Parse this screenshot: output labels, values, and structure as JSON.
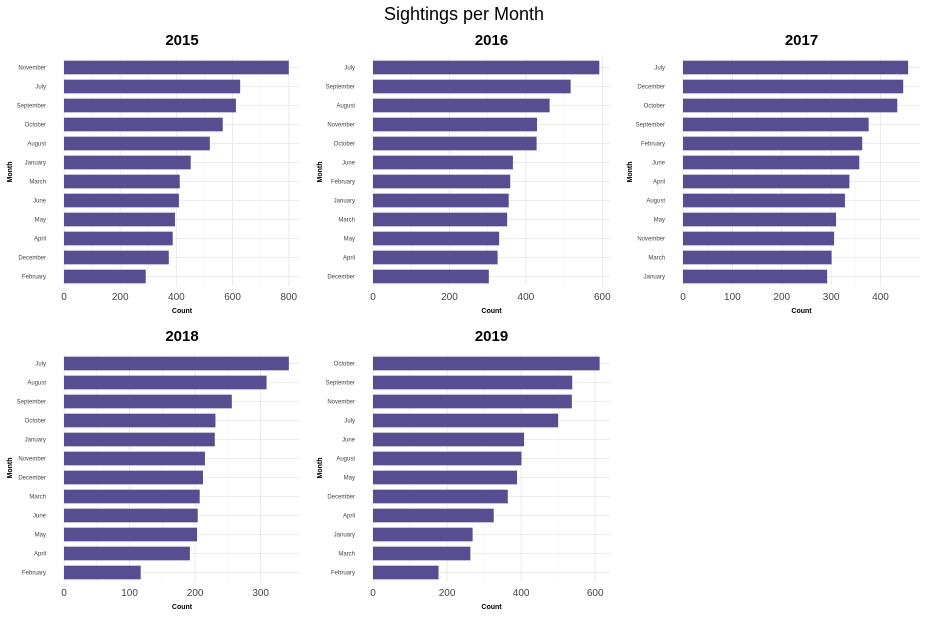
{
  "title": "Sightings per Month",
  "chart_data": [
    {
      "type": "bar",
      "orientation": "horizontal",
      "title": "2015",
      "xlabel": "Count",
      "ylabel": "Month",
      "categories": [
        "November",
        "July",
        "September",
        "October",
        "August",
        "January",
        "March",
        "June",
        "May",
        "April",
        "December",
        "February"
      ],
      "values": [
        800,
        627,
        612,
        565,
        519,
        451,
        412,
        409,
        395,
        387,
        373,
        291
      ],
      "xlim": [
        0,
        840
      ],
      "xticks": [
        0,
        200,
        400,
        600,
        800
      ],
      "color": "#574e92"
    },
    {
      "type": "bar",
      "orientation": "horizontal",
      "title": "2016",
      "xlabel": "Count",
      "ylabel": "Month",
      "categories": [
        "July",
        "September",
        "August",
        "November",
        "October",
        "June",
        "February",
        "January",
        "March",
        "May",
        "April",
        "December"
      ],
      "values": [
        592,
        517,
        462,
        429,
        428,
        366,
        359,
        355,
        351,
        330,
        326,
        303
      ],
      "xlim": [
        0,
        620
      ],
      "xticks": [
        0,
        200,
        400,
        600
      ],
      "color": "#574e92"
    },
    {
      "type": "bar",
      "orientation": "horizontal",
      "title": "2017",
      "xlabel": "Count",
      "ylabel": "Month",
      "categories": [
        "July",
        "December",
        "October",
        "September",
        "February",
        "June",
        "April",
        "August",
        "May",
        "November",
        "March",
        "January"
      ],
      "values": [
        456,
        446,
        434,
        376,
        363,
        357,
        337,
        328,
        310,
        306,
        301,
        292
      ],
      "xlim": [
        0,
        480
      ],
      "xticks": [
        0,
        100,
        200,
        300,
        400
      ],
      "color": "#574e92"
    },
    {
      "type": "bar",
      "orientation": "horizontal",
      "title": "2018",
      "xlabel": "Count",
      "ylabel": "Month",
      "categories": [
        "July",
        "August",
        "September",
        "October",
        "January",
        "November",
        "December",
        "March",
        "June",
        "May",
        "April",
        "February"
      ],
      "values": [
        343,
        309,
        256,
        231,
        230,
        215,
        212,
        207,
        204,
        203,
        192,
        117
      ],
      "xlim": [
        0,
        360
      ],
      "xticks": [
        0,
        100,
        200,
        300
      ],
      "color": "#574e92"
    },
    {
      "type": "bar",
      "orientation": "horizontal",
      "title": "2019",
      "xlabel": "Count",
      "ylabel": "Month",
      "categories": [
        "October",
        "September",
        "November",
        "July",
        "June",
        "August",
        "May",
        "December",
        "April",
        "January",
        "March",
        "February"
      ],
      "values": [
        612,
        538,
        537,
        500,
        408,
        401,
        389,
        364,
        326,
        269,
        263,
        177
      ],
      "xlim": [
        0,
        640
      ],
      "xticks": [
        0,
        200,
        400,
        600
      ],
      "color": "#574e92"
    }
  ]
}
